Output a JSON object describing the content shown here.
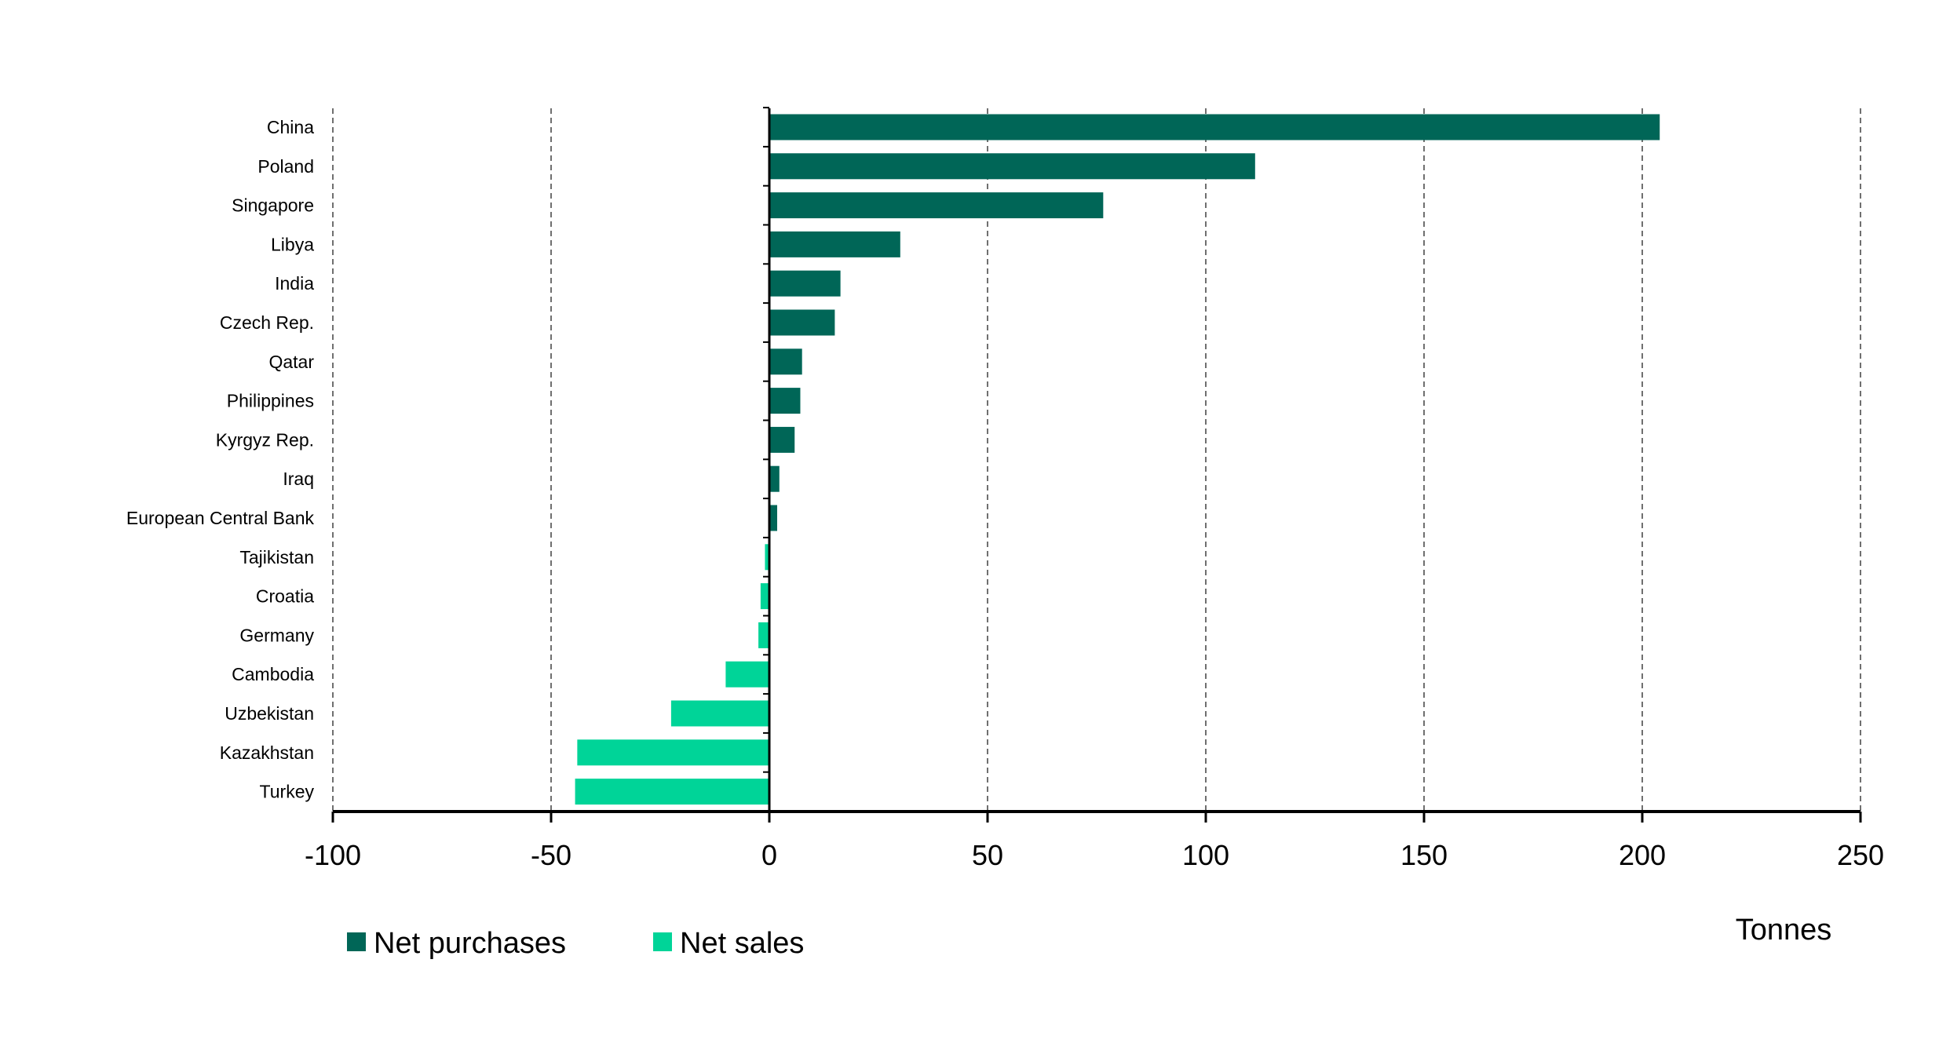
{
  "chart_data": {
    "type": "bar",
    "orientation": "horizontal",
    "title": "",
    "xlabel": "Tonnes",
    "ylabel": "",
    "xlim": [
      -100,
      250
    ],
    "xticks": [
      -100,
      -50,
      0,
      50,
      100,
      150,
      200,
      250
    ],
    "tick_labels": [
      "-100",
      "-50",
      "0",
      "50",
      "100",
      "150",
      "200",
      "250"
    ],
    "grid": "vertical dashed",
    "legend_position": "bottom-left",
    "categories": [
      "China",
      "Poland",
      "Singapore",
      "Libya",
      "India",
      "Czech Rep.",
      "Qatar",
      "Philippines",
      "Kyrgyz Rep.",
      "Iraq",
      "European Central Bank",
      "Tajikistan",
      "Croatia",
      "Germany",
      "Cambodia",
      "Uzbekistan",
      "Kazakhstan",
      "Turkey"
    ],
    "values": [
      204,
      111.3,
      76.5,
      30,
      16.3,
      15,
      7.5,
      7.1,
      5.8,
      2.3,
      1.8,
      -1,
      -2,
      -2.5,
      -10,
      -22.5,
      -44,
      -44.5
    ],
    "series": [
      {
        "name": "Net purchases",
        "color": "#006657"
      },
      {
        "name": "Net sales",
        "color": "#00d498"
      }
    ]
  }
}
